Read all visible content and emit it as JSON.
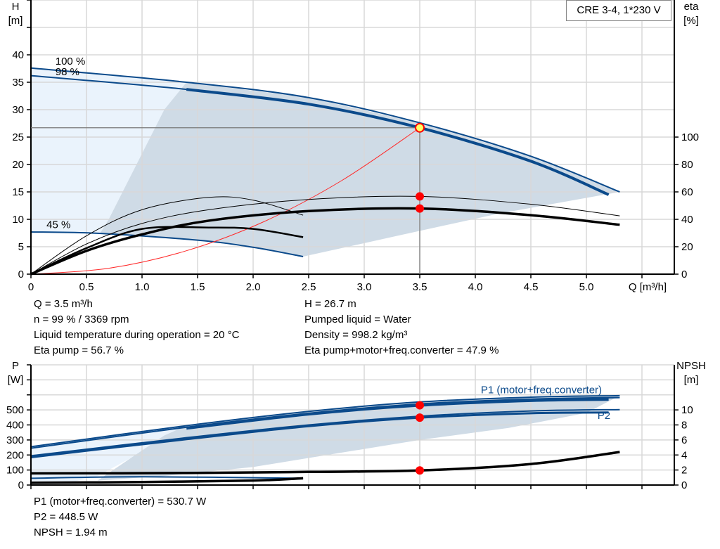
{
  "title": "CRE 3-4, 1*230 V",
  "colors": {
    "curve": "#0b4a8b",
    "eta": "#000000",
    "system": "#ff2a2a",
    "point": "#ff0000",
    "point_highlight": "#ffff66",
    "area_light": "#eaf3fc",
    "area_gray": "#cfdbe6",
    "grid": "#d8d8d8"
  },
  "info_top": {
    "left": [
      "Q = 3.5 m³/h",
      "n = 99 % / 3369 rpm",
      "Liquid temperature during operation = 20 °C",
      "Eta pump = 56.7 %"
    ],
    "right": [
      "H = 26.7 m",
      "Pumped liquid = Water",
      "Density = 998.2 kg/m³",
      "Eta pump+motor+freq.converter = 47.9 %"
    ]
  },
  "info_bottom": [
    "P1 (motor+freq.converter) = 530.7 W",
    "P2 = 448.5 W",
    "NPSH = 1.94 m"
  ],
  "chart_data": [
    {
      "type": "line",
      "name_label": "head-efficiency",
      "xlabel": "Q [m³/h]",
      "ylabel": [
        "H",
        "[m]"
      ],
      "y2label": [
        "eta",
        "[%]"
      ],
      "xlim": [
        0,
        5.8
      ],
      "ylim": [
        0,
        50
      ],
      "y2lim": [
        0,
        200
      ],
      "xticks": [
        "0",
        "0.5",
        "1.0",
        "1.5",
        "2.0",
        "2.5",
        "3.0",
        "3.5",
        "4.0",
        "4.5",
        "5.0"
      ],
      "xtick_values": [
        0,
        0.5,
        1,
        1.5,
        2,
        2.5,
        3,
        3.5,
        4,
        4.5,
        5
      ],
      "yticks": [
        0,
        5,
        10,
        15,
        20,
        25,
        30,
        35,
        40
      ],
      "y2ticks": [
        0,
        20,
        40,
        60,
        80,
        100
      ],
      "grid": true,
      "curve_labels": [
        {
          "text": "100 %",
          "q": 0.22,
          "h": 38.2
        },
        {
          "text": "98 %",
          "q": 0.22,
          "h": 36.3
        },
        {
          "text": "45 %",
          "q": 0.14,
          "h": 8.4
        }
      ],
      "series": [
        {
          "label": "100 %",
          "axis": "H",
          "style": "curve-thin",
          "points": [
            [
              0,
              37.6
            ],
            [
              1.4,
              35.0
            ],
            [
              2.5,
              32.2
            ],
            [
              3.5,
              27.6
            ],
            [
              4.5,
              21.5
            ],
            [
              5.3,
              15.0
            ]
          ]
        },
        {
          "label": "98 %",
          "axis": "H",
          "style": "curve-thin",
          "points": [
            [
              0,
              36.2
            ],
            [
              1.4,
              33.7
            ],
            [
              2.5,
              31.0
            ],
            [
              3.5,
              26.7
            ],
            [
              4.5,
              20.6
            ],
            [
              5.2,
              14.5
            ]
          ]
        },
        {
          "axis": "H",
          "style": "curve-thick",
          "points": [
            [
              1.4,
              33.7
            ],
            [
              2.5,
              31.0
            ],
            [
              3.5,
              26.7
            ],
            [
              4.5,
              20.6
            ],
            [
              5.2,
              14.5
            ]
          ]
        },
        {
          "label": "45 %",
          "axis": "H",
          "style": "curve-thin",
          "points": [
            [
              0,
              7.7
            ],
            [
              0.6,
              7.45
            ],
            [
              1.5,
              6.2
            ],
            [
              2.0,
              4.9
            ],
            [
              2.45,
              3.2
            ]
          ]
        },
        {
          "axis": "H",
          "style": "system",
          "points": [
            [
              0,
              0
            ],
            [
              0.7,
              1.07
            ],
            [
              1.4,
              4.27
            ],
            [
              2.1,
              9.6
            ],
            [
              2.8,
              17.1
            ],
            [
              3.5,
              26.7
            ]
          ]
        },
        {
          "axis": "eta",
          "style": "eta-thin",
          "points": [
            [
              0,
              0
            ],
            [
              0.5,
              22
            ],
            [
              1.0,
              37
            ],
            [
              1.6,
              47
            ],
            [
              2.5,
              54.5
            ],
            [
              3.5,
              56.7
            ],
            [
              4.5,
              51
            ],
            [
              5.3,
              42.5
            ]
          ]
        },
        {
          "axis": "eta",
          "style": "eta-thick",
          "points": [
            [
              0,
              0
            ],
            [
              0.5,
              17
            ],
            [
              1.0,
              29
            ],
            [
              1.6,
              39
            ],
            [
              2.5,
              46
            ],
            [
              3.5,
              47.9
            ],
            [
              4.5,
              43
            ],
            [
              5.3,
              36
            ]
          ]
        },
        {
          "axis": "eta",
          "style": "eta-thin",
          "points": [
            [
              0,
              0
            ],
            [
              0.5,
              28
            ],
            [
              1.0,
              47
            ],
            [
              1.6,
              56
            ],
            [
              2.0,
              54
            ],
            [
              2.45,
              43
            ]
          ]
        },
        {
          "axis": "eta",
          "style": "eta-mid",
          "points": [
            [
              0,
              0
            ],
            [
              0.5,
              19
            ],
            [
              1.0,
              33
            ],
            [
              1.6,
              34
            ],
            [
              2.0,
              33
            ],
            [
              2.45,
              27
            ]
          ]
        }
      ],
      "regions": [
        {
          "style": "area_light",
          "points": [
            [
              0,
              37.6
            ],
            [
              1.4,
              35.0
            ],
            [
              1.2,
              30
            ],
            [
              0.95,
              20
            ],
            [
              0.7,
              10
            ],
            [
              0.62,
              7.4
            ],
            [
              0,
              7.7
            ]
          ]
        },
        {
          "style": "area_gray",
          "points": [
            [
              1.4,
              35.0
            ],
            [
              2.5,
              32.2
            ],
            [
              3.5,
              27.6
            ],
            [
              4.5,
              21.5
            ],
            [
              5.3,
              15.0
            ],
            [
              4.2,
              11
            ],
            [
              3.3,
              7
            ],
            [
              2.45,
              3.2
            ],
            [
              2.0,
              4.9
            ],
            [
              1.5,
              6.2
            ],
            [
              0.62,
              7.4
            ],
            [
              0.7,
              10
            ],
            [
              0.95,
              20
            ],
            [
              1.2,
              30
            ]
          ]
        }
      ],
      "operating_point": {
        "q": 3.5,
        "h": 26.7
      },
      "eta_points": [
        56.7,
        47.9
      ]
    },
    {
      "type": "line",
      "name_label": "power-npsh",
      "ylabel": [
        "P",
        "[W]"
      ],
      "y2label": [
        "NPSH",
        "[m]"
      ],
      "xlim": [
        0,
        5.8
      ],
      "ylim": [
        0,
        800
      ],
      "y2lim": [
        0,
        16
      ],
      "yticks": [
        0,
        100,
        200,
        300,
        400,
        500
      ],
      "y2ticks": [
        0,
        2,
        4,
        6,
        8,
        10
      ],
      "grid": true,
      "series_labels": [
        {
          "text": "P1 (motor+freq.converter)",
          "q": 4.05,
          "p": 610
        },
        {
          "text": "P2",
          "q": 5.1,
          "p": 440
        }
      ],
      "series": [
        {
          "label": "P1 (motor+freq.converter)",
          "axis": "P",
          "style": "curve-thin",
          "points": [
            [
              0,
              255
            ],
            [
              1.4,
              395
            ],
            [
              2.5,
              490
            ],
            [
              3.5,
              553
            ],
            [
              4.5,
              585
            ],
            [
              5.3,
              595
            ]
          ]
        },
        {
          "axis": "P",
          "style": "curve-thin",
          "points": [
            [
              0,
              245
            ],
            [
              1.4,
              385
            ],
            [
              2.5,
              478
            ],
            [
              3.5,
              540
            ],
            [
              4.5,
              572
            ],
            [
              5.3,
              582
            ]
          ]
        },
        {
          "axis": "P",
          "style": "curve-thick",
          "points": [
            [
              1.4,
              378
            ],
            [
              2.5,
              472
            ],
            [
              3.5,
              530.7
            ],
            [
              4.5,
              562
            ],
            [
              5.2,
              570
            ]
          ]
        },
        {
          "label": "P2",
          "axis": "P",
          "style": "curve-thin",
          "points": [
            [
              0,
              195
            ],
            [
              1.4,
              315
            ],
            [
              2.5,
              400
            ],
            [
              3.5,
              458
            ],
            [
              4.5,
              493
            ],
            [
              5.3,
              502
            ]
          ]
        },
        {
          "axis": "P",
          "style": "curve-mid",
          "points": [
            [
              0,
              185
            ],
            [
              1.4,
              305
            ],
            [
              2.5,
              392
            ],
            [
              3.5,
              448.5
            ],
            [
              4.5,
              478
            ],
            [
              5.2,
              483
            ]
          ]
        },
        {
          "axis": "P",
          "style": "curve-thin",
          "points": [
            [
              0,
              45
            ],
            [
              1.0,
              55
            ],
            [
              2.45,
              45
            ]
          ]
        },
        {
          "axis": "NPSH",
          "style": "eta-thick",
          "points": [
            [
              0,
              1.55
            ],
            [
              1.4,
              1.6
            ],
            [
              2.5,
              1.75
            ],
            [
              3.5,
              1.94
            ],
            [
              4.5,
              2.8
            ],
            [
              5.3,
              4.4
            ]
          ]
        },
        {
          "axis": "NPSH",
          "style": "eta-thick",
          "points": [
            [
              0,
              0.3
            ],
            [
              1.0,
              0.4
            ],
            [
              2.0,
              0.6
            ],
            [
              2.45,
              0.9
            ]
          ]
        }
      ],
      "regions": [
        {
          "style": "area_light",
          "points": [
            [
              0,
              255
            ],
            [
              1.4,
              395
            ],
            [
              1.2,
              330
            ],
            [
              0.9,
              180
            ],
            [
              0.6,
              60
            ],
            [
              0.4,
              25
            ],
            [
              0,
              25
            ]
          ]
        },
        {
          "style": "area_gray",
          "points": [
            [
              1.4,
              395
            ],
            [
              2.5,
              490
            ],
            [
              3.5,
              553
            ],
            [
              4.5,
              585
            ],
            [
              5.3,
              595
            ],
            [
              5.0,
              480
            ],
            [
              4.3,
              380
            ],
            [
              3.5,
              300
            ],
            [
              2.5,
              180
            ],
            [
              2.0,
              120
            ],
            [
              1.2,
              60
            ],
            [
              0.6,
              30
            ],
            [
              0.9,
              180
            ],
            [
              1.2,
              330
            ]
          ]
        }
      ],
      "points": [
        {
          "axis": "P",
          "q": 3.5,
          "v": 530.7
        },
        {
          "axis": "P",
          "q": 3.5,
          "v": 448.5
        },
        {
          "axis": "NPSH",
          "q": 3.5,
          "v": 1.94
        }
      ]
    }
  ]
}
